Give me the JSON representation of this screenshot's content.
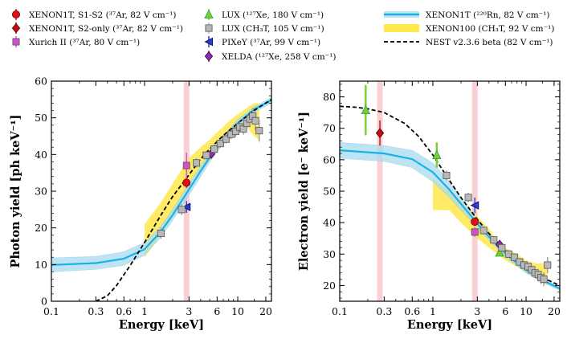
{
  "legend": {
    "items": [
      {
        "id": "x1t_s1s2",
        "label": "XENON1T, S1-S2 (³⁷Ar, 82 V cm⁻¹)",
        "marker": "circle",
        "color": "#e0101a"
      },
      {
        "id": "x1t_s2",
        "label": "XENON1T, S2-only (³⁷Ar, 82 V cm⁻¹)",
        "marker": "diamond",
        "color": "#c80a14"
      },
      {
        "id": "xurich",
        "label": "Xurich II (³⁷Ar, 80 V cm⁻¹)",
        "marker": "square",
        "color": "#d050d0"
      },
      {
        "id": "lux127",
        "label": "LUX (¹²⁷Xe, 180 V cm⁻¹)",
        "marker": "triangle",
        "color": "#7ccc2a"
      },
      {
        "id": "luxch3t",
        "label": "LUX (CH₃T, 105 V cm⁻¹)",
        "marker": "square",
        "color": "#b8b8b8"
      },
      {
        "id": "pixey",
        "label": "PIXeY (³⁷Ar, 99 V cm⁻¹)",
        "marker": "tri-left",
        "color": "#2040d0"
      },
      {
        "id": "xelda",
        "label": "XELDA (¹²⁷Xe, 258 V cm⁻¹)",
        "marker": "diamond",
        "color": "#8a2bc0"
      },
      {
        "id": "x1t220",
        "label": "XENON1T (²²⁰Rn, 82 V cm⁻¹)",
        "marker": "band-line",
        "color": "#1ab0e8"
      },
      {
        "id": "x100",
        "label": "XENON100 (CH₃T, 92 V cm⁻¹)",
        "marker": "band",
        "color": "#ffe84a"
      },
      {
        "id": "nest",
        "label": "NEST v2.3.6 beta (82 V cm⁻¹)",
        "marker": "dashed",
        "color": "#000000"
      }
    ]
  },
  "chart_data": [
    {
      "type": "scatter",
      "panel": "left",
      "xlabel": "Energy [keV]",
      "ylabel": "Photon yield [ph keV⁻¹]",
      "xscale": "log",
      "xlim": [
        0.1,
        23
      ],
      "ylim": [
        0,
        60
      ],
      "xticks": [
        {
          "v": 0.1,
          "l": "0.1"
        },
        {
          "v": 0.3,
          "l": "0.3"
        },
        {
          "v": 0.6,
          "l": "0.6"
        },
        {
          "v": 1,
          "l": "1"
        },
        {
          "v": 3,
          "l": "3"
        },
        {
          "v": 6,
          "l": "6"
        },
        {
          "v": 10,
          "l": "10"
        },
        {
          "v": 20,
          "l": "20"
        }
      ],
      "yticks": [
        0,
        10,
        20,
        30,
        40,
        50,
        60
      ],
      "vbands": [
        {
          "x": 2.82,
          "color": "#f9d0d4"
        }
      ],
      "band_x1t": {
        "x": [
          0.1,
          0.3,
          0.6,
          1,
          1.5,
          2,
          3,
          4,
          5,
          7,
          10,
          15,
          23
        ],
        "lo": [
          8.0,
          8.7,
          9.8,
          12.5,
          17.5,
          22,
          29,
          34,
          38,
          43,
          47.5,
          51.5,
          54
        ],
        "hi": [
          11.8,
          12.2,
          13.5,
          16,
          20.5,
          25,
          32,
          37,
          40.5,
          45,
          49.5,
          53,
          55.5
        ],
        "mid": [
          9.9,
          10.4,
          11.6,
          14.2,
          19,
          23.5,
          30.5,
          35.5,
          39.2,
          44,
          48.5,
          52.3,
          54.8
        ]
      },
      "band_x100": {
        "x": [
          1,
          1.5,
          2,
          2.5,
          3,
          4,
          5,
          6,
          8,
          10,
          13,
          15,
          17
        ],
        "lo": [
          12,
          18,
          24,
          28,
          32,
          36,
          38,
          41,
          44,
          46,
          47,
          45,
          44
        ],
        "hi": [
          21,
          27,
          32,
          36,
          39,
          42,
          44,
          46,
          49,
          51,
          53,
          54,
          54
        ]
      },
      "nest": {
        "x": [
          0.3,
          0.4,
          0.5,
          0.7,
          1,
          1.5,
          2,
          3,
          4,
          5,
          7,
          10,
          15,
          23
        ],
        "y": [
          0,
          1.5,
          4.3,
          9.7,
          16,
          23.5,
          28.5,
          34.5,
          38.8,
          41.5,
          45.2,
          48.5,
          52,
          55
        ]
      },
      "series": [
        {
          "id": "x1t_s1s2",
          "points": [
            {
              "x": 2.82,
              "y": 32.3,
              "err": 1.4
            }
          ]
        },
        {
          "id": "xurich",
          "points": [
            {
              "x": 2.82,
              "y": 37,
              "err": 3.5
            }
          ]
        },
        {
          "id": "pixey",
          "points": [
            {
              "x": 2.82,
              "y": 25.7,
              "err": 1.6
            }
          ]
        },
        {
          "id": "xelda",
          "points": [
            {
              "x": 5.2,
              "y": 40.2,
              "err": 1.3
            }
          ]
        },
        {
          "id": "luxch3t",
          "points": [
            {
              "x": 1.5,
              "y": 18.5,
              "err": 1.5
            },
            {
              "x": 2.5,
              "y": 25,
              "err": 1.5
            },
            {
              "x": 3.6,
              "y": 37.7,
              "err": 1.3
            },
            {
              "x": 4.6,
              "y": 39.8,
              "err": 1.2
            },
            {
              "x": 5.6,
              "y": 41.5,
              "err": 1.2
            },
            {
              "x": 6.5,
              "y": 43,
              "err": 1.2
            },
            {
              "x": 7.5,
              "y": 44.2,
              "err": 1.2
            },
            {
              "x": 8.5,
              "y": 45.5,
              "err": 1.3
            },
            {
              "x": 9.5,
              "y": 46.3,
              "err": 1.5
            },
            {
              "x": 10.5,
              "y": 47.5,
              "err": 1.5
            },
            {
              "x": 11.5,
              "y": 47,
              "err": 1.6
            },
            {
              "x": 12.5,
              "y": 48.5,
              "err": 1.8
            },
            {
              "x": 13.5,
              "y": 49.7,
              "err": 2
            },
            {
              "x": 14.5,
              "y": 50.5,
              "err": 2.2
            },
            {
              "x": 15.5,
              "y": 49.2,
              "err": 2.5
            },
            {
              "x": 17,
              "y": 46.5,
              "err": 3
            }
          ]
        }
      ]
    },
    {
      "type": "scatter",
      "panel": "right",
      "xlabel": "Energy [keV]",
      "ylabel": "Electron yield [e⁻ keV⁻¹]",
      "xscale": "log",
      "xlim": [
        0.1,
        23
      ],
      "ylim": [
        15,
        85
      ],
      "xticks": [
        {
          "v": 0.1,
          "l": "0.1"
        },
        {
          "v": 0.3,
          "l": "0.3"
        },
        {
          "v": 0.6,
          "l": "0.6"
        },
        {
          "v": 1,
          "l": "1"
        },
        {
          "v": 3,
          "l": "3"
        },
        {
          "v": 6,
          "l": "6"
        },
        {
          "v": 10,
          "l": "10"
        },
        {
          "v": 20,
          "l": "20"
        }
      ],
      "yticks": [
        20,
        30,
        40,
        50,
        60,
        70,
        80
      ],
      "vbands": [
        {
          "x": 0.27,
          "color": "#f9d0d4"
        },
        {
          "x": 2.82,
          "color": "#f9d0d4"
        }
      ],
      "band_x1t": {
        "x": [
          0.1,
          0.3,
          0.6,
          1,
          1.5,
          2,
          3,
          4,
          5,
          7,
          10,
          15,
          23
        ],
        "lo": [
          60.5,
          59.5,
          57.5,
          53,
          48,
          44,
          38.5,
          34.5,
          31.5,
          27.5,
          24,
          21,
          18.5
        ],
        "hi": [
          65.5,
          64.5,
          63,
          59,
          53,
          48,
          41,
          36.5,
          33.5,
          29.5,
          26,
          22.5,
          19.5
        ],
        "mid": [
          63,
          62,
          60.2,
          56,
          50.5,
          46,
          39.7,
          35.5,
          32.5,
          28.5,
          25,
          21.7,
          19
        ]
      },
      "band_x100": {
        "x": [
          1,
          1.5,
          2,
          3,
          4,
          5,
          6,
          8,
          10,
          13,
          15,
          17
        ],
        "lo": [
          44,
          44,
          40,
          35,
          32,
          30,
          28,
          26,
          24,
          22,
          21,
          20
        ],
        "hi": [
          54,
          50,
          47,
          42,
          38,
          34,
          32,
          30,
          28,
          27,
          27,
          27
        ]
      },
      "nest": {
        "x": [
          0.1,
          0.15,
          0.2,
          0.3,
          0.5,
          0.7,
          1,
          1.5,
          2,
          3,
          4,
          5,
          7,
          10,
          15,
          23
        ],
        "y": [
          77,
          76.7,
          76.2,
          75,
          71.5,
          67.5,
          61.5,
          53.5,
          48,
          41,
          36.5,
          33.5,
          29.5,
          26,
          22.5,
          20
        ]
      },
      "series": [
        {
          "id": "x1t_s2",
          "points": [
            {
              "x": 0.27,
              "y": 68.5,
              "err": 4
            }
          ]
        },
        {
          "id": "lux127",
          "points": [
            {
              "x": 0.19,
              "y": 75.8,
              "err": 8
            },
            {
              "x": 1.1,
              "y": 61.5,
              "err": 4
            },
            {
              "x": 5.2,
              "y": 30.5,
              "err": 1.2
            }
          ]
        },
        {
          "id": "x1t_s1s2",
          "points": [
            {
              "x": 2.82,
              "y": 40.3,
              "err": 1.3
            }
          ]
        },
        {
          "id": "pixey",
          "points": [
            {
              "x": 2.82,
              "y": 45.5,
              "err": 2.5
            }
          ]
        },
        {
          "id": "xurich",
          "points": [
            {
              "x": 2.82,
              "y": 37,
              "err": 1.5
            }
          ]
        },
        {
          "id": "xelda",
          "points": [
            {
              "x": 5.2,
              "y": 33,
              "err": 1.2
            }
          ]
        },
        {
          "id": "luxch3t",
          "points": [
            {
              "x": 1.4,
              "y": 55,
              "err": 1.5
            },
            {
              "x": 2.4,
              "y": 48,
              "err": 1.5
            },
            {
              "x": 3.5,
              "y": 37.5,
              "err": 1.3
            },
            {
              "x": 4.5,
              "y": 34.5,
              "err": 1.2
            },
            {
              "x": 5.5,
              "y": 32,
              "err": 1.2
            },
            {
              "x": 6.5,
              "y": 30,
              "err": 1.2
            },
            {
              "x": 7.5,
              "y": 29,
              "err": 1.2
            },
            {
              "x": 8.5,
              "y": 27.5,
              "err": 1.2
            },
            {
              "x": 9.5,
              "y": 26.5,
              "err": 1.3
            },
            {
              "x": 10.5,
              "y": 26,
              "err": 1.3
            },
            {
              "x": 11.5,
              "y": 25,
              "err": 1.5
            },
            {
              "x": 12.5,
              "y": 24,
              "err": 1.5
            },
            {
              "x": 13.5,
              "y": 23.5,
              "err": 1.8
            },
            {
              "x": 14.5,
              "y": 22.5,
              "err": 2
            },
            {
              "x": 15.5,
              "y": 22,
              "err": 2.2
            },
            {
              "x": 17,
              "y": 26.5,
              "err": 2.5
            }
          ]
        }
      ]
    }
  ]
}
